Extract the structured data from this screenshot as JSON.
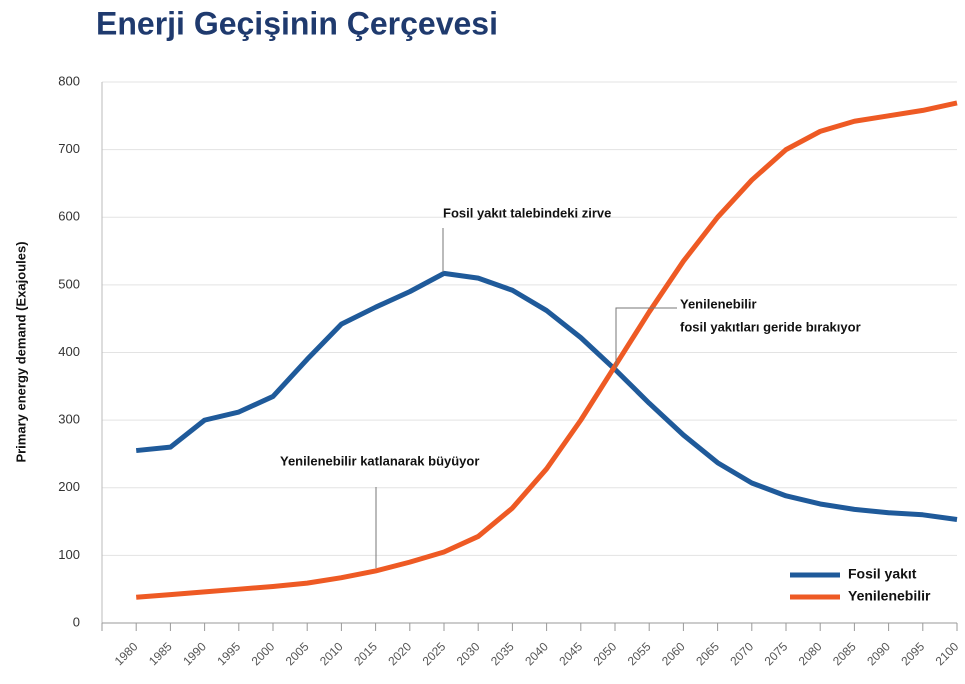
{
  "chart_data": {
    "type": "line",
    "title": "Enerji Geçişinin Çerçevesi",
    "y_label": "Primary energy demand (Exajoules)",
    "categories": [
      "1980",
      "1985",
      "1990",
      "1995",
      "2000",
      "2005",
      "2010",
      "2015",
      "2020",
      "2025",
      "2030",
      "2035",
      "2040",
      "2045",
      "2050",
      "2055",
      "2060",
      "2065",
      "2070",
      "2075",
      "2080",
      "2085",
      "2090",
      "2095",
      "2100"
    ],
    "series": [
      {
        "name": "Fosil yakıt",
        "color": "#1f5a9a",
        "values": [
          255,
          260,
          300,
          312,
          335,
          390,
          442,
          467,
          490,
          517,
          510,
          492,
          462,
          422,
          375,
          325,
          278,
          237,
          207,
          188,
          176,
          168,
          163,
          160,
          153
        ]
      },
      {
        "name": "Yenilenebilir",
        "color": "#ee5a24",
        "values": [
          38,
          42,
          46,
          50,
          54,
          59,
          67,
          77,
          90,
          105,
          128,
          170,
          228,
          300,
          380,
          460,
          535,
          600,
          655,
          700,
          727,
          742,
          750,
          758,
          769
        ]
      }
    ],
    "annotations": [
      "Fosil yakıt talebindeki zirve",
      "Yenilenebilir",
      "fosil yakıtları geride bırakıyor",
      "Yenilenebilir katlanarak büyüyor"
    ],
    "ylim": [
      0,
      800
    ],
    "yticks": [
      0,
      100,
      200,
      300,
      400,
      500,
      600,
      700,
      800
    ],
    "grid": true,
    "legend": "lower right"
  }
}
